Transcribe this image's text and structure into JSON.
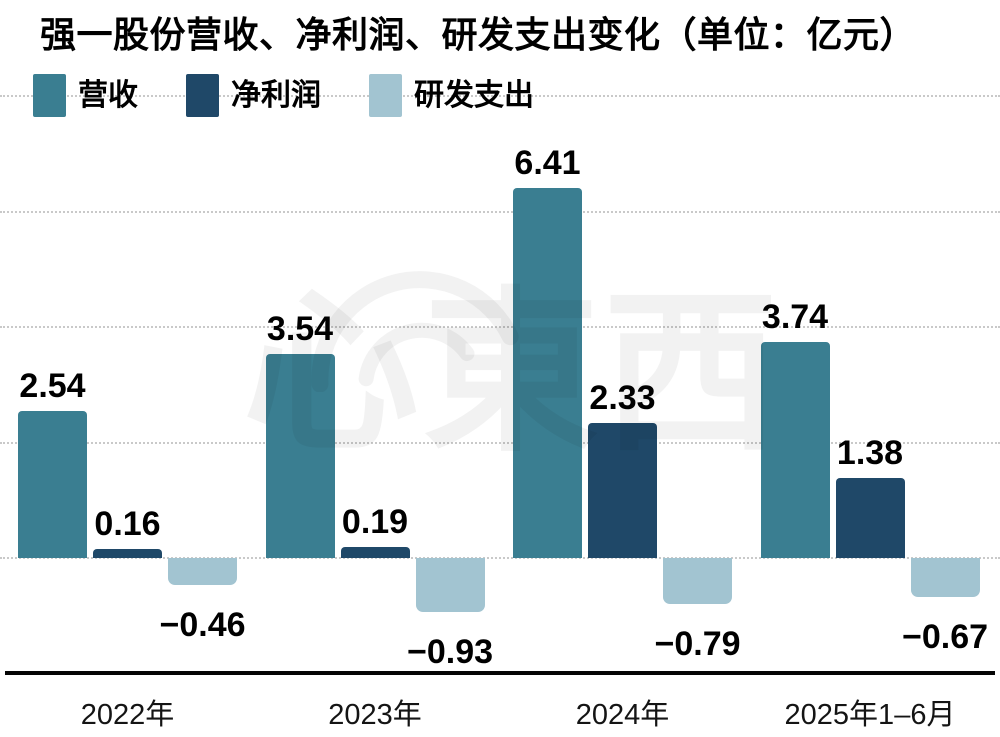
{
  "title": "强一股份营收、净利润、研发支出变化（单位：亿元）",
  "watermark": {
    "text": "心東西",
    "icon": "signal-arcs"
  },
  "colors": {
    "revenue": "#3A7E91",
    "net_profit": "#1F4868",
    "rd": "#A2C4D1",
    "grid": "#C9C9C9",
    "axis": "#050505",
    "text": "#000000",
    "background": "#FFFFFF"
  },
  "chart_data": {
    "type": "bar",
    "title": "强一股份营收、净利润、研发支出变化（单位：亿元）",
    "unit": "亿元",
    "xlabel": "",
    "ylabel": "",
    "categories": [
      "2022年",
      "2023年",
      "2024年",
      "2025年1–6月"
    ],
    "series": [
      {
        "name": "营收",
        "color_key": "revenue",
        "values": [
          2.54,
          3.54,
          6.41,
          3.74
        ],
        "labels": [
          "2.54",
          "3.54",
          "6.41",
          "3.74"
        ]
      },
      {
        "name": "净利润",
        "color_key": "net_profit",
        "values": [
          0.16,
          0.19,
          2.33,
          1.38
        ],
        "labels": [
          "0.16",
          "0.19",
          "2.33",
          "1.38"
        ]
      },
      {
        "name": "研发支出",
        "color_key": "rd",
        "values": [
          -0.46,
          -0.93,
          -0.79,
          -0.67
        ],
        "labels": [
          "−0.46",
          "−0.93",
          "−0.79",
          "−0.67"
        ]
      }
    ],
    "ylim": [
      -2,
      8
    ],
    "gridline_values": [
      0,
      2,
      4,
      6,
      8
    ],
    "grid": true,
    "legend_position": "top-left",
    "value_labels_shown": true
  }
}
